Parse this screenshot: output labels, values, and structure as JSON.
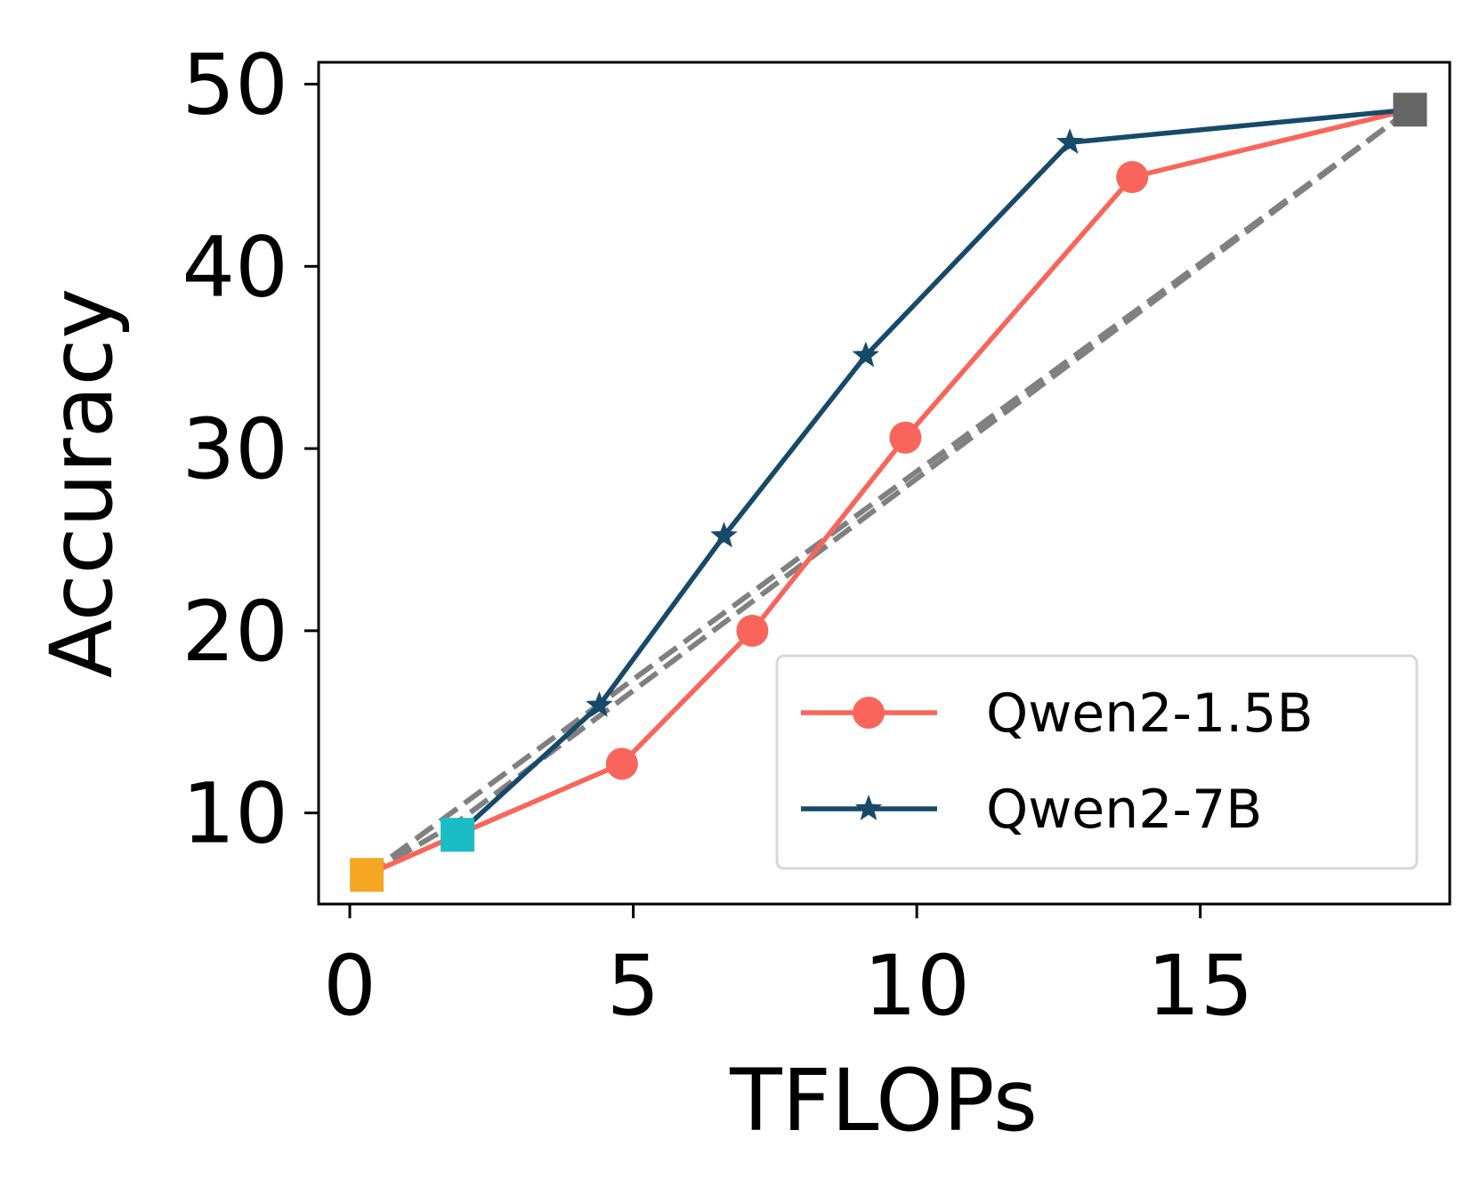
{
  "chart_data": {
    "type": "line",
    "title": "",
    "xlabel": "TFLOPs",
    "ylabel": "Accuracy",
    "xlim": [
      -0.55,
      19.4
    ],
    "ylim": [
      5.0,
      51.2
    ],
    "xticks": [
      0,
      5,
      10,
      15
    ],
    "yticks": [
      10,
      20,
      30,
      40,
      50
    ],
    "grid": false,
    "legend_position": "bottom-right",
    "series": [
      {
        "name": "Qwen2-1.5B",
        "color": "#f9655a",
        "marker": "circle",
        "x": [
          0.3,
          1.9,
          4.8,
          7.1,
          9.8,
          13.8,
          18.7
        ],
        "y": [
          6.6,
          8.8,
          12.7,
          20.0,
          30.6,
          44.9,
          48.6
        ]
      },
      {
        "name": "Qwen2-7B",
        "color": "#174a6a",
        "marker": "star",
        "x": [
          1.9,
          4.4,
          6.6,
          9.1,
          12.7,
          18.7
        ],
        "y": [
          8.8,
          15.9,
          25.2,
          35.1,
          46.8,
          48.6
        ]
      }
    ],
    "reference_lines": [
      {
        "style": "dashed",
        "color": "#808080",
        "x": [
          0.3,
          1.9,
          18.7
        ],
        "y": [
          6.6,
          9.5,
          48.6
        ]
      },
      {
        "style": "dashed",
        "color": "#808080",
        "x": [
          0.3,
          18.7
        ],
        "y": [
          6.6,
          48.6
        ]
      }
    ],
    "endpoint_markers": [
      {
        "shape": "square",
        "color": "#f5a623",
        "x": 0.3,
        "y": 6.6
      },
      {
        "shape": "square",
        "color": "#1bbdc4",
        "x": 1.9,
        "y": 8.8
      },
      {
        "shape": "square",
        "color": "#656565",
        "x": 18.7,
        "y": 48.6
      }
    ]
  }
}
